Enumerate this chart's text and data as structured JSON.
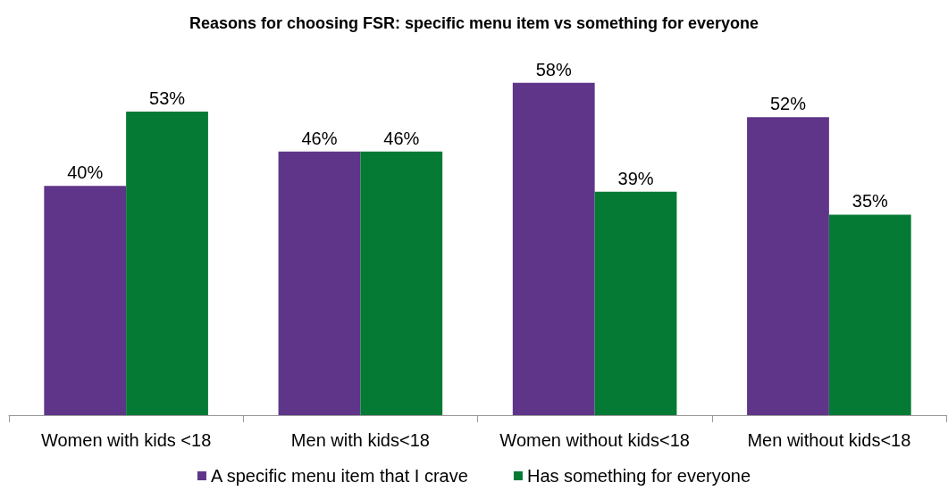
{
  "chart_data": {
    "type": "bar",
    "title": "Reasons for choosing FSR: specific menu item vs something for everyone",
    "categories": [
      "Women with kids <18",
      "Men with kids<18",
      "Women without kids<18",
      "Men without kids<18"
    ],
    "series": [
      {
        "name": "A specific menu item that I crave",
        "color": "#5f3589",
        "values": [
          40,
          46,
          58,
          52
        ],
        "value_labels": [
          "40%",
          "46%",
          "58%",
          "52%"
        ]
      },
      {
        "name": "Has something for everyone",
        "color": "#057a35",
        "values": [
          53,
          46,
          39,
          35
        ],
        "value_labels": [
          "53%",
          "46%",
          "39%",
          "35%"
        ]
      }
    ],
    "legend": "bottom"
  }
}
